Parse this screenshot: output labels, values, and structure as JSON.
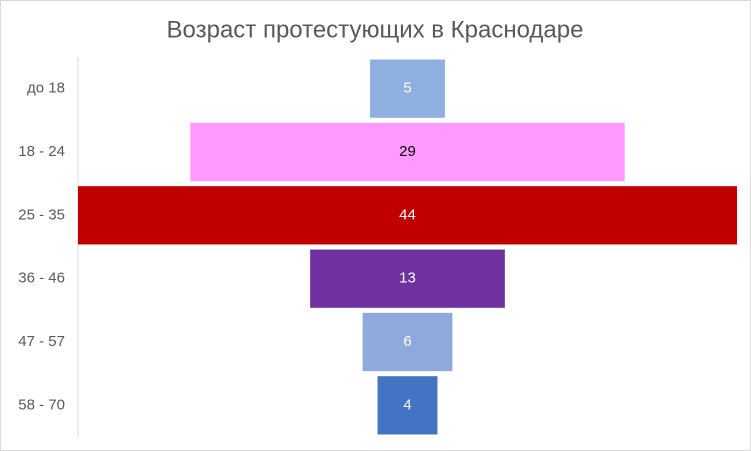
{
  "chart_data": {
    "type": "funnel",
    "title": "Возраст протестующих в Краснодаре",
    "categories": [
      "до 18",
      "18 - 24",
      "25 - 35",
      "36 - 46",
      "47 - 57",
      "58 - 70"
    ],
    "values": [
      5,
      29,
      44,
      13,
      6,
      4
    ],
    "colors": [
      "#8eb0e0",
      "#ff99ff",
      "#c00000",
      "#7030a0",
      "#8eaadb",
      "#4472c4"
    ]
  }
}
